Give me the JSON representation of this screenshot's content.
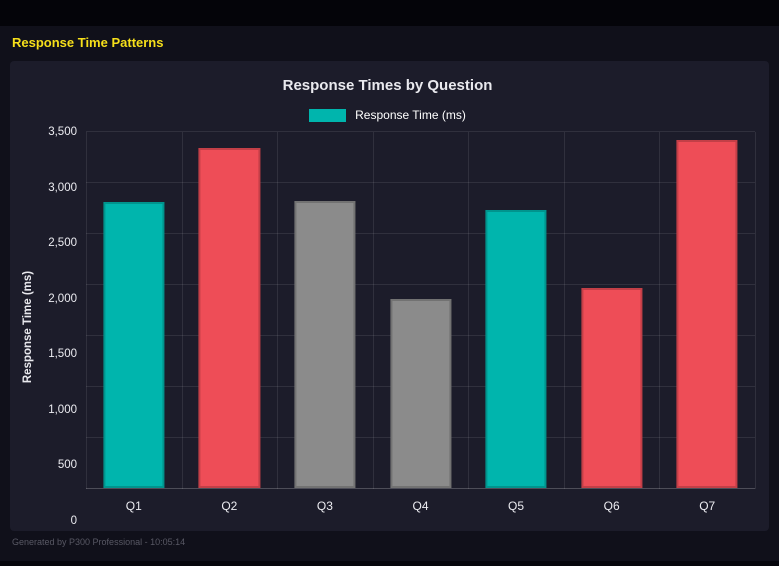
{
  "page": {
    "title": "Response Time Patterns",
    "footer": "Generated by P300 Professional - 10:05:14"
  },
  "colors": {
    "accent_yellow": "#f6df1a",
    "teal": "#00b5ad",
    "red": "#ee4d57",
    "gray": "#8b8b8b",
    "panel_bg": "#1c1c2a",
    "page_bg": "#10101a"
  },
  "chart_data": {
    "type": "bar",
    "title": "Response Times by Question",
    "legend": [
      {
        "label": "Response Time (ms)",
        "color": "#00b5ad"
      }
    ],
    "legend_position": "top",
    "categories": [
      "Q1",
      "Q2",
      "Q3",
      "Q4",
      "Q5",
      "Q6",
      "Q7"
    ],
    "values": [
      2800,
      3330,
      2810,
      1850,
      2730,
      1960,
      3410
    ],
    "colors": [
      "#00b5ad",
      "#ee4d57",
      "#8b8b8b",
      "#8b8b8b",
      "#00b5ad",
      "#ee4d57",
      "#ee4d57"
    ],
    "xlabel": "",
    "ylabel": "Response Time (ms)",
    "ylim": [
      0,
      3500
    ],
    "yticks": [
      0,
      500,
      1000,
      1500,
      2000,
      2500,
      3000,
      3500
    ],
    "ytick_labels": [
      "0",
      "500",
      "1,000",
      "1,500",
      "2,000",
      "2,500",
      "3,000",
      "3,500"
    ],
    "grid": true
  }
}
